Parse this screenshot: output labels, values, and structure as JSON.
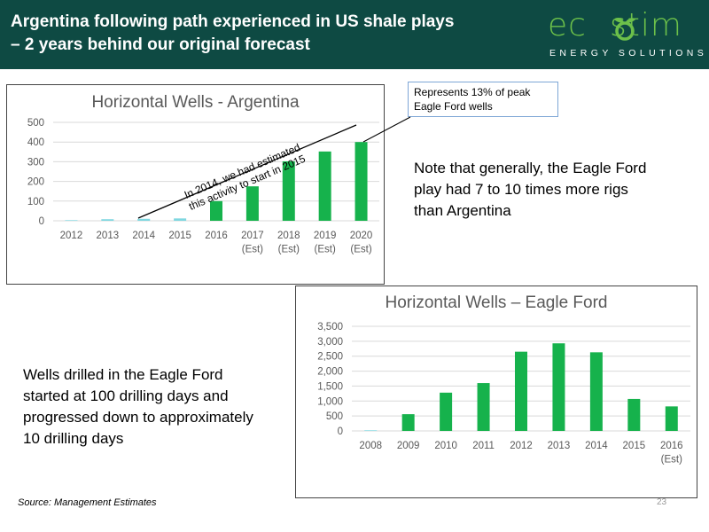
{
  "header": {
    "title_line1": "Argentina following path experienced in US shale plays",
    "title_line2": "– 2 years behind our original forecast",
    "logo_left": "ec",
    "logo_right": "stim",
    "logo_sub": "ENERGY SOLUTIONS"
  },
  "colors": {
    "header_bg": "#0e4a43",
    "bar": "#16b24c",
    "bar_light": "#7fd7e0",
    "logo_green": "#6cc04a",
    "callout_border": "#7ea6d6"
  },
  "callout": {
    "line1": "Represents 13% of peak",
    "line2": "Eagle Ford wells"
  },
  "notes": {
    "argentina": [
      "Note that generally, the Eagle Ford",
      "play had 7 to 10 times more rigs",
      "than Argentina"
    ],
    "eagle_ford": [
      "Wells drilled in the Eagle Ford",
      "started at 100 drilling days and",
      "progressed down to approximately",
      "10 drilling days"
    ]
  },
  "source": "Source: Management Estimates",
  "page_number": "23",
  "chart_data": [
    {
      "type": "bar",
      "title": "Horizontal Wells - Argentina",
      "categories": [
        [
          "2012"
        ],
        [
          "2013"
        ],
        [
          "2014"
        ],
        [
          "2015"
        ],
        [
          "2016"
        ],
        [
          "2017",
          "(Est)"
        ],
        [
          "2018",
          "(Est)"
        ],
        [
          "2019",
          "(Est)"
        ],
        [
          "2020",
          "(Est)"
        ]
      ],
      "values": [
        3,
        8,
        10,
        12,
        100,
        175,
        302,
        352,
        400
      ],
      "ylim": [
        0,
        500
      ],
      "yticks": [
        "0",
        "100",
        "200",
        "300",
        "400",
        "500"
      ],
      "grid": true,
      "annotation": "In 2014, we had estimated this activity to start in 2015"
    },
    {
      "type": "bar",
      "title": "Horizontal Wells – Eagle Ford",
      "categories": [
        [
          "2008"
        ],
        [
          "2009"
        ],
        [
          "2010"
        ],
        [
          "2011"
        ],
        [
          "2012"
        ],
        [
          "2013"
        ],
        [
          "2014"
        ],
        [
          "2015"
        ],
        [
          "2016",
          "(Est)"
        ]
      ],
      "values": [
        20,
        560,
        1280,
        1600,
        2650,
        2930,
        2630,
        1070,
        820
      ],
      "ylim": [
        0,
        3500
      ],
      "yticks": [
        "0",
        "500",
        "1,000",
        "1,500",
        "2,000",
        "2,500",
        "3,000",
        "3,500"
      ],
      "grid": true
    }
  ]
}
